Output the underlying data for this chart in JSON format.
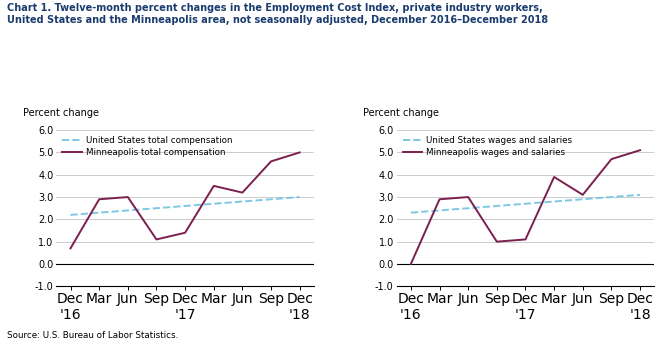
{
  "title_line1": "Chart 1. Twelve-month percent changes in the Employment Cost Index, private industry workers,",
  "title_line2": "United States and the Minneapolis area, not seasonally adjusted, December 2016–December 2018",
  "source": "Source: U.S. Bureau of Labor Statistics.",
  "ylabel": "Percent change",
  "x_labels": [
    "Dec\n'16",
    "Mar",
    "Jun",
    "Sep",
    "Dec\n'17",
    "Mar",
    "Jun",
    "Sep",
    "Dec\n'18"
  ],
  "ylim": [
    -1.0,
    6.0
  ],
  "yticks": [
    -1.0,
    0.0,
    1.0,
    2.0,
    3.0,
    4.0,
    5.0,
    6.0
  ],
  "left_chart": {
    "us_label": "United States total compensation",
    "mpls_label": "Minneapolis total compensation",
    "us_values": [
      2.2,
      2.3,
      2.4,
      2.5,
      2.6,
      2.7,
      2.8,
      2.9,
      3.0
    ],
    "mpls_values": [
      0.7,
      2.9,
      3.0,
      1.1,
      1.4,
      3.5,
      3.2,
      4.6,
      5.0
    ]
  },
  "right_chart": {
    "us_label": "United States wages and salaries",
    "mpls_label": "Minneapolis wages and salaries",
    "us_values": [
      2.3,
      2.4,
      2.5,
      2.6,
      2.7,
      2.8,
      2.9,
      3.0,
      3.1
    ],
    "mpls_values": [
      0.0,
      2.9,
      3.0,
      1.0,
      1.1,
      3.9,
      3.1,
      4.7,
      5.1
    ]
  },
  "us_color": "#7ec8e3",
  "mpls_color": "#7b1f4e",
  "title_color": "#1a3c6e",
  "bg_color": "#ffffff",
  "grid_color": "#cccccc"
}
